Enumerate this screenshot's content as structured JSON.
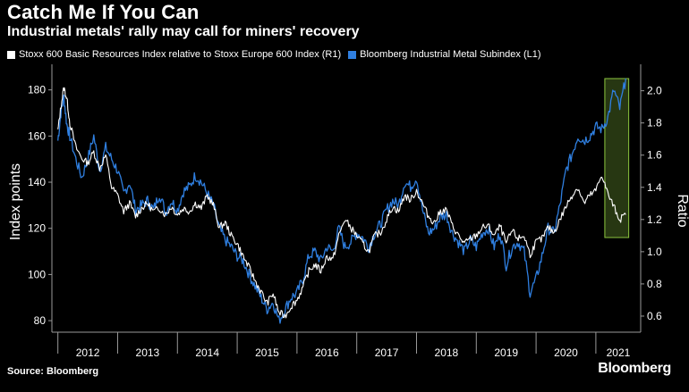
{
  "header": {
    "title": "Catch Me If You Can",
    "subtitle": "Industrial metals' rally may call for miners' recovery"
  },
  "footer": {
    "source": "Source: Bloomberg",
    "brand": "Bloomberg"
  },
  "colors": {
    "white_series": "#ffffff",
    "blue_series": "#2f7fe0",
    "highlight": "#8dc63f",
    "background": "#000000"
  },
  "chart_data": {
    "type": "line",
    "xlabel": "",
    "ylabel_left": "Index points",
    "ylabel_right": "Ratio",
    "ylim_left": [
      75,
      188
    ],
    "ylim_right": [
      0.5,
      2.12
    ],
    "yticks_left": [
      80,
      100,
      120,
      140,
      160,
      180
    ],
    "yticks_right": [
      0.6,
      0.8,
      1.0,
      1.2,
      1.4,
      1.6,
      1.8,
      2.0
    ],
    "xlim": [
      2011.9,
      2021.75
    ],
    "xtick_labels": [
      "2012",
      "2013",
      "2014",
      "2015",
      "2016",
      "2017",
      "2018",
      "2019",
      "2020",
      "2021"
    ],
    "legend_position": "top-left",
    "highlight_region": [
      2021.15,
      2021.55
    ],
    "series": [
      {
        "name": "Stoxx 600 Basic Resources Index relative to Stoxx Europe 600 Index (R1)",
        "axis": "right",
        "color": "#ffffff",
        "x": [
          2012.0,
          2012.05,
          2012.1,
          2012.15,
          2012.2,
          2012.3,
          2012.4,
          2012.5,
          2012.6,
          2012.7,
          2012.8,
          2012.9,
          2013.0,
          2013.1,
          2013.2,
          2013.3,
          2013.4,
          2013.5,
          2013.6,
          2013.7,
          2013.8,
          2013.9,
          2014.0,
          2014.1,
          2014.2,
          2014.3,
          2014.4,
          2014.5,
          2014.6,
          2014.7,
          2014.8,
          2014.9,
          2015.0,
          2015.1,
          2015.2,
          2015.3,
          2015.4,
          2015.5,
          2015.6,
          2015.7,
          2015.8,
          2015.9,
          2016.0,
          2016.1,
          2016.2,
          2016.3,
          2016.4,
          2016.5,
          2016.6,
          2016.7,
          2016.8,
          2016.9,
          2017.0,
          2017.1,
          2017.2,
          2017.3,
          2017.4,
          2017.5,
          2017.6,
          2017.7,
          2017.8,
          2017.9,
          2018.0,
          2018.1,
          2018.2,
          2018.3,
          2018.4,
          2018.5,
          2018.6,
          2018.7,
          2018.8,
          2018.9,
          2019.0,
          2019.1,
          2019.2,
          2019.3,
          2019.4,
          2019.5,
          2019.6,
          2019.7,
          2019.8,
          2019.9,
          2020.0,
          2020.1,
          2020.2,
          2020.3,
          2020.4,
          2020.5,
          2020.6,
          2020.7,
          2020.8,
          2020.9,
          2021.0,
          2021.1,
          2021.2,
          2021.3,
          2021.4,
          2021.5
        ],
        "values": [
          1.75,
          1.9,
          2.02,
          1.95,
          1.8,
          1.65,
          1.58,
          1.55,
          1.62,
          1.52,
          1.6,
          1.4,
          1.35,
          1.25,
          1.3,
          1.22,
          1.27,
          1.3,
          1.25,
          1.27,
          1.23,
          1.28,
          1.23,
          1.27,
          1.25,
          1.3,
          1.27,
          1.35,
          1.29,
          1.15,
          1.18,
          1.1,
          1.05,
          0.97,
          0.9,
          0.82,
          0.75,
          0.68,
          0.74,
          0.62,
          0.6,
          0.66,
          0.7,
          0.78,
          0.88,
          0.92,
          0.88,
          0.97,
          0.95,
          1.1,
          1.2,
          1.15,
          1.1,
          1.05,
          1.0,
          1.1,
          1.12,
          1.2,
          1.28,
          1.25,
          1.35,
          1.32,
          1.38,
          1.3,
          1.22,
          1.18,
          1.25,
          1.26,
          1.16,
          1.1,
          1.05,
          1.08,
          1.1,
          1.15,
          1.16,
          1.1,
          1.16,
          1.05,
          1.13,
          1.08,
          1.1,
          0.98,
          1.06,
          1.08,
          1.15,
          1.12,
          1.2,
          1.28,
          1.35,
          1.4,
          1.3,
          1.35,
          1.38,
          1.48,
          1.36,
          1.28,
          1.2,
          1.23
        ]
      },
      {
        "name": "Bloomberg Industrial Metal Subindex (L1)",
        "axis": "left",
        "color": "#2f7fe0",
        "x": [
          2012.0,
          2012.05,
          2012.1,
          2012.15,
          2012.2,
          2012.3,
          2012.4,
          2012.5,
          2012.6,
          2012.7,
          2012.8,
          2012.9,
          2013.0,
          2013.1,
          2013.2,
          2013.3,
          2013.4,
          2013.5,
          2013.6,
          2013.7,
          2013.8,
          2013.9,
          2014.0,
          2014.1,
          2014.2,
          2014.3,
          2014.4,
          2014.5,
          2014.6,
          2014.7,
          2014.8,
          2014.9,
          2015.0,
          2015.1,
          2015.2,
          2015.3,
          2015.4,
          2015.5,
          2015.6,
          2015.7,
          2015.8,
          2015.9,
          2016.0,
          2016.1,
          2016.2,
          2016.3,
          2016.4,
          2016.5,
          2016.6,
          2016.7,
          2016.8,
          2016.9,
          2017.0,
          2017.1,
          2017.2,
          2017.3,
          2017.4,
          2017.5,
          2017.6,
          2017.7,
          2017.8,
          2017.9,
          2018.0,
          2018.1,
          2018.2,
          2018.3,
          2018.4,
          2018.5,
          2018.6,
          2018.7,
          2018.8,
          2018.9,
          2019.0,
          2019.1,
          2019.2,
          2019.3,
          2019.4,
          2019.5,
          2019.6,
          2019.7,
          2019.8,
          2019.9,
          2020.0,
          2020.1,
          2020.2,
          2020.3,
          2020.4,
          2020.5,
          2020.6,
          2020.7,
          2020.8,
          2020.9,
          2021.0,
          2021.1,
          2021.2,
          2021.3,
          2021.4,
          2021.5
        ],
        "values": [
          158,
          170,
          177,
          165,
          160,
          150,
          142,
          150,
          160,
          145,
          155,
          150,
          145,
          135,
          140,
          128,
          130,
          132,
          128,
          135,
          127,
          132,
          128,
          136,
          138,
          143,
          140,
          135,
          130,
          120,
          115,
          112,
          108,
          106,
          100,
          95,
          90,
          85,
          88,
          80,
          85,
          90,
          92,
          98,
          108,
          110,
          106,
          112,
          110,
          120,
          112,
          114,
          118,
          116,
          112,
          118,
          122,
          128,
          132,
          130,
          140,
          138,
          142,
          128,
          118,
          120,
          125,
          126,
          118,
          114,
          110,
          115,
          112,
          118,
          120,
          112,
          118,
          104,
          112,
          114,
          110,
          92,
          98,
          108,
          120,
          118,
          130,
          145,
          152,
          160,
          158,
          160,
          164,
          163,
          168,
          180,
          172,
          185
        ]
      }
    ]
  }
}
